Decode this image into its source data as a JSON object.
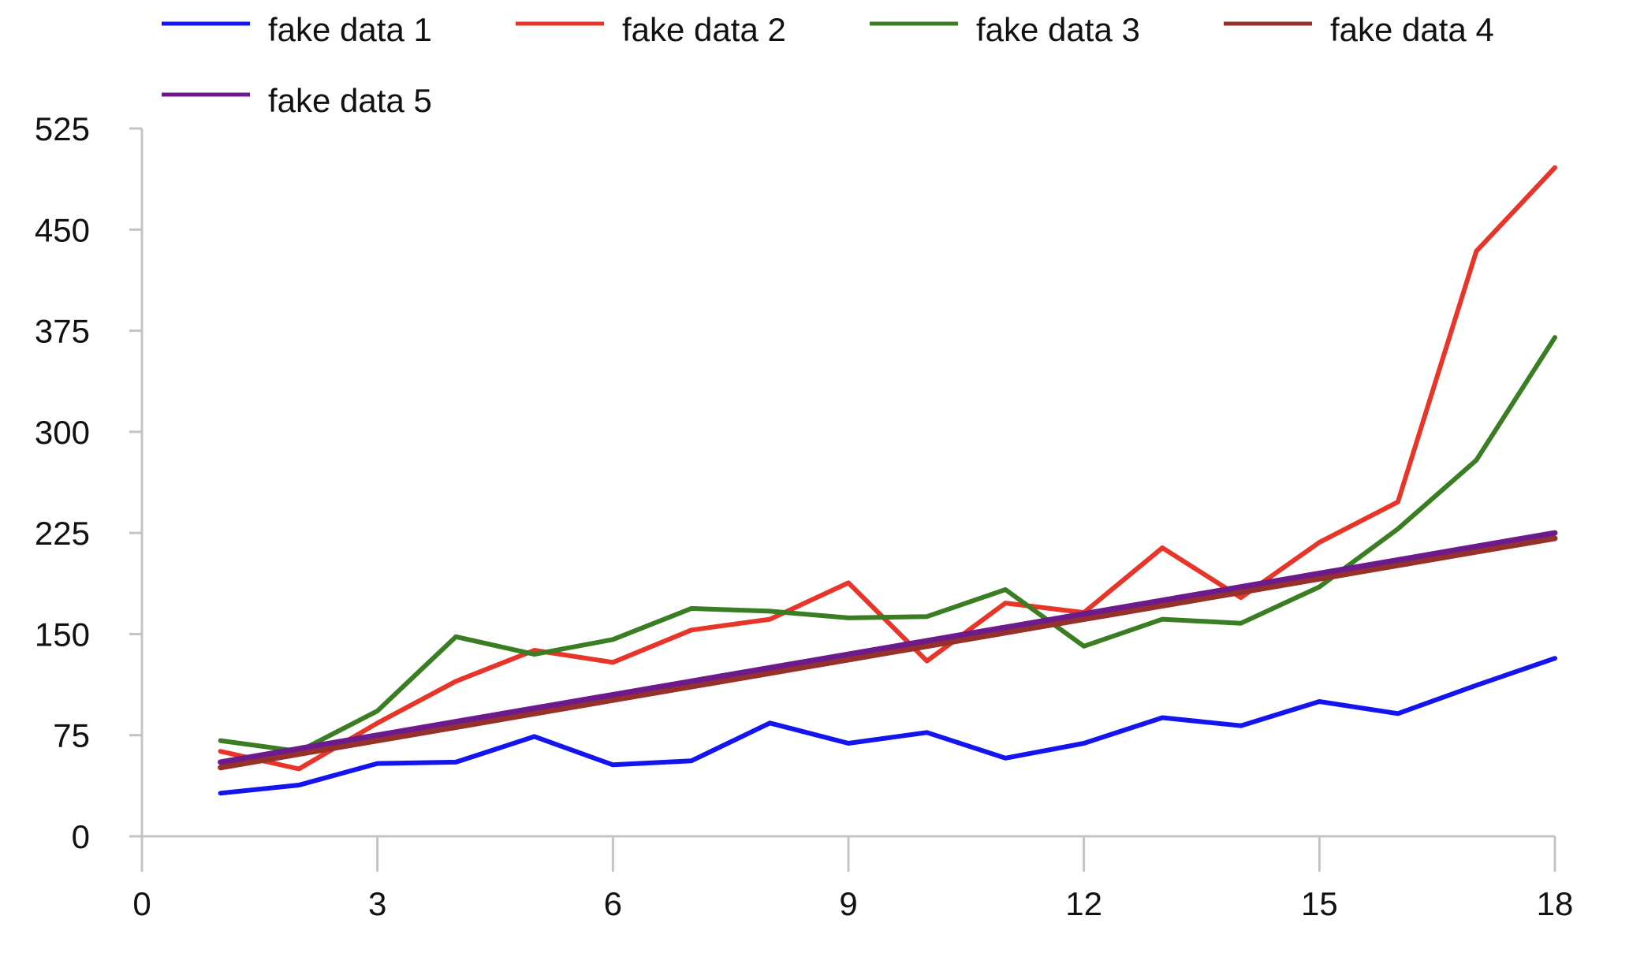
{
  "chart_data": {
    "type": "line",
    "title": "",
    "xlabel": "",
    "ylabel": "",
    "xlim": [
      0,
      18
    ],
    "ylim": [
      0,
      525
    ],
    "x_ticks": [
      0,
      3,
      6,
      9,
      12,
      15,
      18
    ],
    "y_ticks": [
      0,
      75,
      150,
      225,
      300,
      375,
      450,
      525
    ],
    "grid": false,
    "legend_position": "top",
    "x": [
      1,
      2,
      3,
      4,
      5,
      6,
      7,
      8,
      9,
      10,
      11,
      12,
      13,
      14,
      15,
      16,
      17,
      18
    ],
    "series": [
      {
        "name": "fake data 1",
        "color": "#1414f0",
        "values": [
          32,
          38,
          54,
          55,
          74,
          53,
          56,
          84,
          69,
          77,
          58,
          69,
          88,
          82,
          100,
          91,
          112,
          132
        ]
      },
      {
        "name": "fake data 2",
        "color": "#e8352a",
        "values": [
          63,
          50,
          84,
          115,
          138,
          129,
          153,
          161,
          188,
          130,
          173,
          166,
          214,
          177,
          218,
          248,
          434,
          496
        ]
      },
      {
        "name": "fake data 3",
        "color": "#3a7d22",
        "values": [
          71,
          63,
          93,
          148,
          135,
          146,
          169,
          167,
          162,
          163,
          183,
          141,
          161,
          158,
          185,
          228,
          279,
          370
        ]
      },
      {
        "name": "fake data 4",
        "color": "#96302a",
        "values": [
          51,
          61,
          71,
          81,
          91,
          101,
          111,
          121,
          131,
          141,
          151,
          161,
          171,
          181,
          191,
          201,
          211,
          221
        ]
      },
      {
        "name": "fake data 5",
        "color": "#6c1a8c",
        "values": [
          55,
          65,
          75,
          85,
          95,
          105,
          115,
          125,
          135,
          145,
          155,
          165,
          175,
          185,
          195,
          205,
          215,
          225
        ]
      }
    ]
  }
}
